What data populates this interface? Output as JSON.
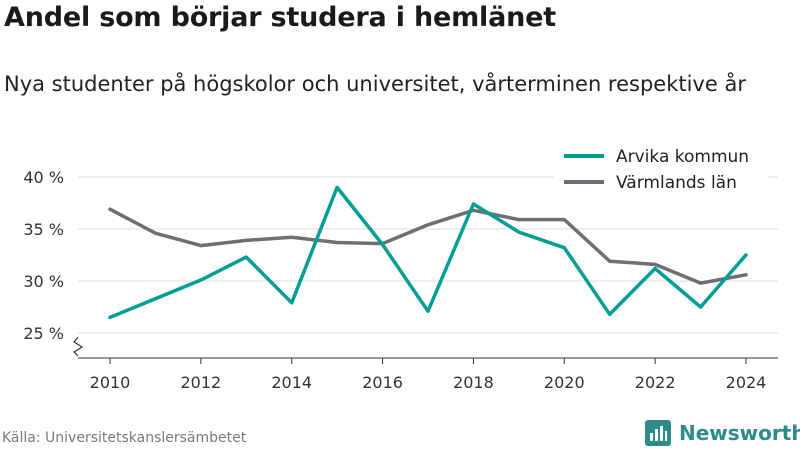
{
  "header": {
    "title": "Andel som börjar studera i hemlänet",
    "subtitle": "Nya studenter på högskolor och universitet, vårterminen respektive år"
  },
  "footer": {
    "source": "Källa: Universitetskanslersämbetet",
    "brand": "Newsworthy"
  },
  "colors": {
    "arvika": "#009e94",
    "varmland": "#6e6e74",
    "grid": "#dddddd",
    "brand": "#2e8b8a"
  },
  "chart_data": {
    "type": "line",
    "x": [
      2010,
      2011,
      2012,
      2013,
      2014,
      2015,
      2016,
      2017,
      2018,
      2019,
      2020,
      2021,
      2022,
      2023,
      2024
    ],
    "series": [
      {
        "name": "Arvika kommun",
        "color": "#009e94",
        "values": [
          26.5,
          28.3,
          30.1,
          32.3,
          27.9,
          39.0,
          33.5,
          27.1,
          37.4,
          34.7,
          33.2,
          26.8,
          31.2,
          27.5,
          32.5
        ]
      },
      {
        "name": "Värmlands län",
        "color": "#6e6e74",
        "values": [
          36.9,
          34.6,
          33.4,
          33.9,
          34.2,
          33.7,
          33.6,
          35.4,
          36.8,
          35.9,
          35.9,
          31.9,
          31.6,
          29.8,
          30.6
        ]
      }
    ],
    "y_ticks": [
      "25 %",
      "30 %",
      "35 %",
      "40 %"
    ],
    "y_tick_values": [
      25,
      30,
      35,
      40
    ],
    "x_ticks": [
      "2010",
      "2012",
      "2014",
      "2016",
      "2018",
      "2020",
      "2022",
      "2024"
    ],
    "x_tick_values": [
      2010,
      2012,
      2014,
      2016,
      2018,
      2020,
      2022,
      2024
    ],
    "ylim": [
      25,
      40
    ],
    "xlim": [
      2010,
      2024
    ],
    "grid": true,
    "legend_position": "top-right",
    "axis_break": true
  }
}
